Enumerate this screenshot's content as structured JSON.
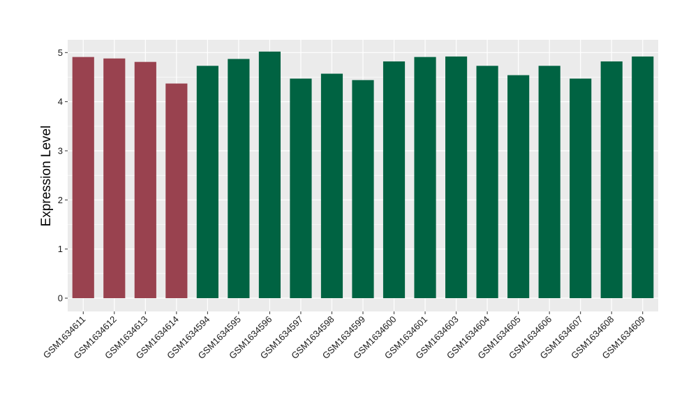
{
  "chart_data": {
    "type": "bar",
    "title": "",
    "xlabel": "",
    "ylabel": "Expression Level",
    "ylim": [
      -0.27,
      5.26
    ],
    "yticks": [
      0,
      1,
      2,
      3,
      4,
      5
    ],
    "grid": true,
    "legend": "none",
    "categories": [
      "GSM1634611",
      "GSM1634612",
      "GSM1634613",
      "GSM1634614",
      "GSM1634594",
      "GSM1634595",
      "GSM1634596",
      "GSM1634597",
      "GSM1634598",
      "GSM1634599",
      "GSM1634600",
      "GSM1634601",
      "GSM1634603",
      "GSM1634604",
      "GSM1634605",
      "GSM1634606",
      "GSM1634607",
      "GSM1634608",
      "GSM1634609"
    ],
    "values": [
      4.91,
      4.88,
      4.81,
      4.37,
      4.73,
      4.87,
      5.02,
      4.47,
      4.57,
      4.44,
      4.82,
      4.91,
      4.92,
      4.73,
      4.54,
      4.73,
      4.47,
      4.82,
      4.92
    ],
    "group": [
      0,
      0,
      0,
      0,
      1,
      1,
      1,
      1,
      1,
      1,
      1,
      1,
      1,
      1,
      1,
      1,
      1,
      1,
      1
    ],
    "group_colors": [
      "#99424F",
      "#006342"
    ],
    "panel_color": "#EBEBEB",
    "grid_color": "#FFFFFF"
  }
}
